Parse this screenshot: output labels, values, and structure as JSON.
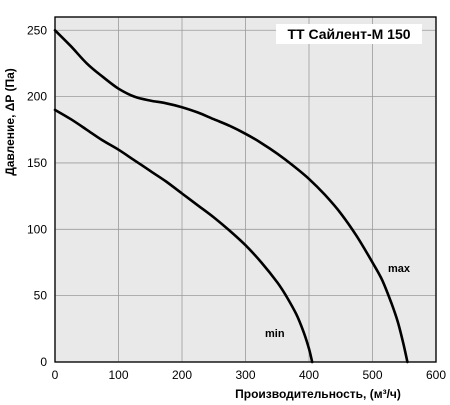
{
  "chart_data": {
    "type": "line",
    "title": "ТТ Сайлент-М 150",
    "xlabel": "Производительность, (м³/ч)",
    "ylabel": "Давление, ΔP (Па)",
    "xlim": [
      0,
      600
    ],
    "ylim": [
      0,
      260
    ],
    "xticks": [
      0,
      100,
      200,
      300,
      400,
      500,
      600
    ],
    "yticks": [
      0,
      50,
      100,
      150,
      200,
      250
    ],
    "grid": true,
    "background_color": "#e9e9e9",
    "line_color": "#000000",
    "series": [
      {
        "name": "max",
        "x": [
          0,
          25,
          50,
          75,
          100,
          125,
          150,
          175,
          200,
          225,
          250,
          275,
          300,
          325,
          350,
          375,
          400,
          425,
          450,
          475,
          500,
          515,
          530,
          540,
          548,
          555
        ],
        "y": [
          250,
          238,
          225,
          215,
          206,
          200,
          197,
          195,
          192,
          188,
          183,
          178,
          172,
          165,
          157,
          148,
          138,
          126,
          112,
          95,
          75,
          62,
          44,
          30,
          15,
          0
        ]
      },
      {
        "name": "min",
        "x": [
          0,
          25,
          50,
          75,
          100,
          125,
          150,
          175,
          200,
          225,
          250,
          275,
          300,
          325,
          350,
          365,
          380,
          392,
          400,
          405
        ],
        "y": [
          190,
          183,
          175,
          167,
          160,
          152,
          144,
          136,
          127,
          118,
          109,
          99,
          88,
          75,
          60,
          49,
          36,
          22,
          10,
          0
        ]
      }
    ]
  }
}
